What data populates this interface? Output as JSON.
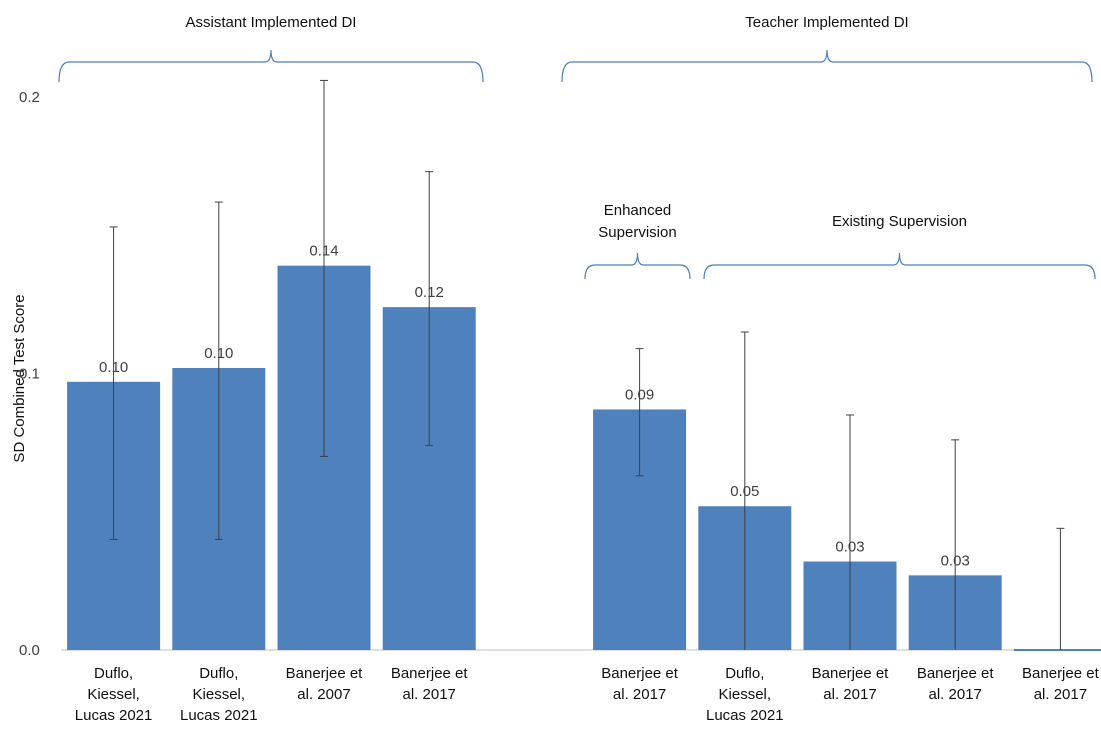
{
  "chart_data": {
    "type": "bar",
    "ylabel": "SD Combined Test Score",
    "ylim": [
      0,
      0.2
    ],
    "yticks": [
      "0.0",
      "0.1",
      "0.2"
    ],
    "ytick_values": [
      0,
      0.1,
      0.2
    ],
    "grid": false,
    "bars": [
      {
        "category": [
          "Duflo,",
          "Kiessel,",
          "Lucas 2021"
        ],
        "value": 0.097,
        "label": "0.10",
        "err_low": 0.04,
        "err_high": 0.153,
        "slot": 0
      },
      {
        "category": [
          "Duflo,",
          "Kiessel,",
          "Lucas 2021"
        ],
        "value": 0.102,
        "label": "0.10",
        "err_low": 0.04,
        "err_high": 0.162,
        "slot": 1
      },
      {
        "category": [
          "Banerjee et",
          "al. 2007"
        ],
        "value": 0.139,
        "label": "0.14",
        "err_low": 0.07,
        "err_high": 0.206,
        "slot": 2
      },
      {
        "category": [
          "Banerjee et",
          "al. 2017"
        ],
        "value": 0.124,
        "label": "0.12",
        "err_low": 0.074,
        "err_high": 0.173,
        "slot": 3
      },
      {
        "category": [
          "Banerjee et",
          "al. 2017"
        ],
        "value": 0.087,
        "label": "0.09",
        "err_low": 0.063,
        "err_high": 0.109,
        "slot": 5
      },
      {
        "category": [
          "Duflo,",
          "Kiessel,",
          "Lucas 2021"
        ],
        "value": 0.052,
        "label": "0.05",
        "err_low": 0.0,
        "err_high": 0.115,
        "slot": 6
      },
      {
        "category": [
          "Banerjee et",
          "al. 2017"
        ],
        "value": 0.032,
        "label": "0.03",
        "err_low": 0.0,
        "err_high": 0.085,
        "slot": 7
      },
      {
        "category": [
          "Banerjee et",
          "al. 2017"
        ],
        "value": 0.027,
        "label": "0.03",
        "err_low": 0.0,
        "err_high": 0.076,
        "slot": 8
      },
      {
        "category": [
          "Banerjee et",
          "al. 2017"
        ],
        "value": 0.0,
        "label": "",
        "err_low": 0.0,
        "err_high": 0.044,
        "slot": 9
      }
    ],
    "groups": [
      {
        "label": [
          "Assistant Implemented  DI"
        ],
        "from_slot": 0,
        "to_slot": 3,
        "level": "top"
      },
      {
        "label": [
          "Teacher Implemented DI"
        ],
        "from_slot": 5,
        "to_slot": 9,
        "level": "top"
      },
      {
        "label": [
          "Enhanced",
          "Supervision"
        ],
        "from_slot": 5,
        "to_slot": 5,
        "level": "sub"
      },
      {
        "label": [
          "Existing Supervision"
        ],
        "from_slot": 6,
        "to_slot": 9,
        "level": "sub"
      }
    ]
  }
}
